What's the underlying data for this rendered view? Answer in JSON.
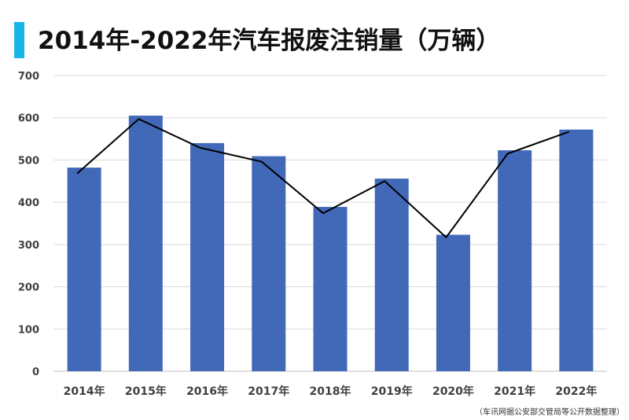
{
  "title": "2014年-2022年汽车报废注销量（万辆）",
  "source": "（车讯网据公安部交管局等公开数据整理）",
  "colors": {
    "accent": "#19b4e8",
    "bar": "#4169b8",
    "line": "#000000",
    "grid": "#d9d9d9"
  },
  "chart_data": {
    "type": "bar",
    "categories": [
      "2014年",
      "2015年",
      "2016年",
      "2017年",
      "2018年",
      "2019年",
      "2020年",
      "2021年",
      "2022年"
    ],
    "series": [
      {
        "type": "bar",
        "values": [
          482,
          605,
          540,
          509,
          389,
          456,
          323,
          523,
          572
        ]
      },
      {
        "type": "line",
        "values": [
          468,
          597,
          529,
          496,
          374,
          450,
          317,
          515,
          567
        ]
      }
    ],
    "ylim": [
      0,
      700
    ],
    "yticks": [
      0,
      100,
      200,
      300,
      400,
      500,
      600,
      700
    ],
    "grid": true,
    "legend": "none"
  }
}
